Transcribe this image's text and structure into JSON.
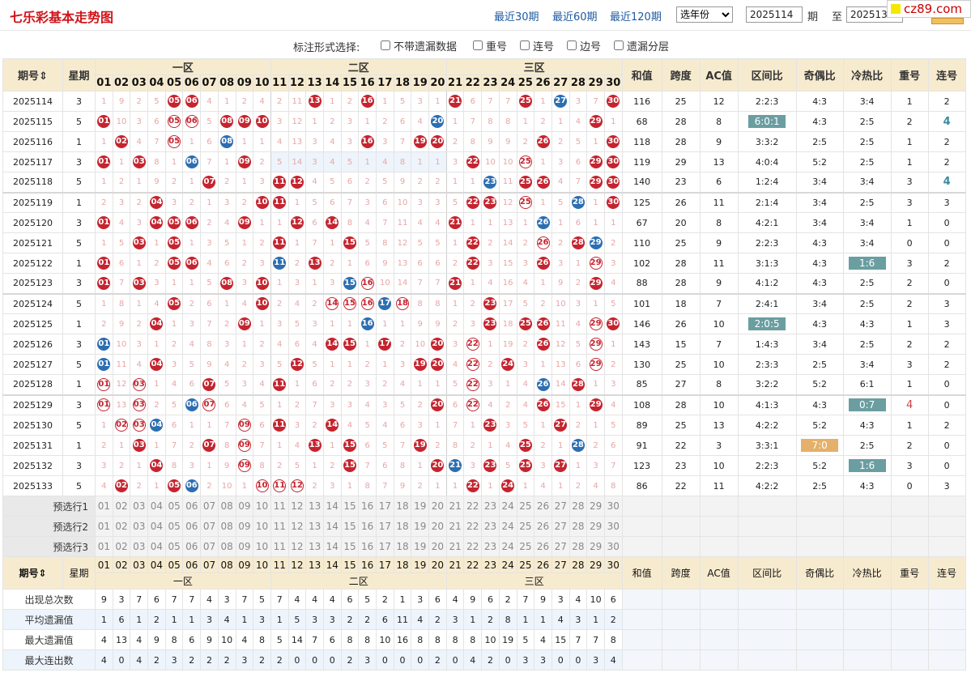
{
  "header": {
    "title": "七乐彩基本走势图",
    "links": [
      "最近30期",
      "最近60期",
      "最近120期"
    ],
    "year_select": "选年份",
    "from_value": "2025114",
    "from_label": "期",
    "to_label": "至",
    "to_value": "2025133",
    "watermark": "cz89.com"
  },
  "options": {
    "label": "标注形式选择:",
    "items": [
      "不带遗漏数据",
      "重号",
      "连号",
      "边号",
      "遗漏分层"
    ]
  },
  "columns": {
    "period": "期号",
    "week": "星期",
    "zone1": "一区",
    "zone2": "二区",
    "zone3": "三区",
    "stats": [
      "和值",
      "跨度",
      "AC值",
      "区间比",
      "奇偶比",
      "冷热比",
      "重号",
      "连号"
    ],
    "stats_footer": [
      "和值",
      "跨度",
      "AC值",
      "区间比",
      "奇偶比",
      "冷热比",
      "重号",
      "连号"
    ]
  },
  "numbers": [
    "01",
    "02",
    "03",
    "04",
    "05",
    "06",
    "07",
    "08",
    "09",
    "10",
    "11",
    "12",
    "13",
    "14",
    "15",
    "16",
    "17",
    "18",
    "19",
    "20",
    "21",
    "22",
    "23",
    "24",
    "25",
    "26",
    "27",
    "28",
    "29",
    "30"
  ],
  "rows": [
    {
      "p": "2025114",
      "w": "3",
      "c": [
        "1",
        "9",
        "2",
        "5",
        "r05",
        "r06",
        "4",
        "1",
        "2",
        "4",
        "2",
        "11",
        "r13",
        "1",
        "2",
        "r16",
        "1",
        "5",
        "3",
        "1",
        "r21",
        "6",
        "7",
        "7",
        "r25",
        "1",
        "b27",
        "3",
        "7",
        "r30"
      ],
      "s": [
        "116",
        "25",
        "12",
        "2:2:3",
        "4:3",
        "3:4",
        "1",
        "2"
      ]
    },
    {
      "p": "2025115",
      "w": "5",
      "c": [
        "r01",
        "10",
        "3",
        "6",
        "o05",
        "o06",
        "5",
        "r08",
        "r09",
        "r10",
        "3",
        "12",
        "1",
        "2",
        "3",
        "1",
        "2",
        "6",
        "4",
        "b20",
        "1",
        "7",
        "8",
        "8",
        "1",
        "2",
        "1",
        "4",
        "r29",
        "1"
      ],
      "s": [
        "68",
        "28",
        "8",
        "h6:0:1",
        "4:3",
        "2:5",
        "2",
        "b4"
      ]
    },
    {
      "p": "2025116",
      "w": "1",
      "c": [
        "1",
        "r02",
        "4",
        "7",
        "o05",
        "1",
        "6",
        "b08",
        "1",
        "1",
        "4",
        "13",
        "3",
        "4",
        "3",
        "r16",
        "3",
        "7",
        "r19",
        "r20",
        "2",
        "8",
        "9",
        "9",
        "2",
        "r26",
        "2",
        "5",
        "1",
        "r30"
      ],
      "s": [
        "118",
        "28",
        "9",
        "3:3:2",
        "2:5",
        "2:5",
        "1",
        "2"
      ]
    },
    {
      "p": "2025117",
      "w": "3",
      "c": [
        "r01",
        "1",
        "r03",
        "8",
        "1",
        "b06",
        "7",
        "1",
        "r09",
        "2",
        "g5",
        "g14",
        "g3",
        "g4",
        "g5",
        "g1",
        "g4",
        "g8",
        "g1",
        "g1",
        "3",
        "r22",
        "10",
        "10",
        "o25",
        "1",
        "3",
        "6",
        "r29",
        "r30"
      ],
      "s": [
        "119",
        "29",
        "13",
        "4:0:4",
        "5:2",
        "2:5",
        "1",
        "2"
      ]
    },
    {
      "p": "2025118",
      "w": "5",
      "c": [
        "1",
        "2",
        "1",
        "9",
        "2",
        "1",
        "r07",
        "2",
        "1",
        "3",
        "r11",
        "r12",
        "4",
        "5",
        "6",
        "2",
        "5",
        "9",
        "2",
        "2",
        "1",
        "1",
        "b23",
        "11",
        "r25",
        "r26",
        "4",
        "7",
        "r29",
        "r30"
      ],
      "s": [
        "140",
        "23",
        "6",
        "1:2:4",
        "3:4",
        "3:4",
        "3",
        "b4"
      ]
    },
    {
      "p": "2025119",
      "w": "1",
      "c": [
        "2",
        "3",
        "2",
        "r04",
        "3",
        "2",
        "1",
        "3",
        "2",
        "r10",
        "r11",
        "1",
        "5",
        "6",
        "7",
        "3",
        "6",
        "10",
        "3",
        "3",
        "5",
        "r22",
        "r23",
        "12",
        "o25",
        "1",
        "5",
        "b28",
        "1",
        "r30"
      ],
      "s": [
        "125",
        "26",
        "11",
        "2:1:4",
        "3:4",
        "2:5",
        "3",
        "3"
      ]
    },
    {
      "p": "2025120",
      "w": "3",
      "c": [
        "r01",
        "4",
        "3",
        "r04",
        "r05",
        "r06",
        "2",
        "4",
        "r09",
        "1",
        "1",
        "r12",
        "6",
        "r14",
        "8",
        "4",
        "7",
        "11",
        "4",
        "4",
        "r21",
        "1",
        "1",
        "13",
        "1",
        "b26",
        "1",
        "6",
        "1",
        "1"
      ],
      "s": [
        "67",
        "20",
        "8",
        "4:2:1",
        "3:4",
        "3:4",
        "1",
        "0"
      ]
    },
    {
      "p": "2025121",
      "w": "5",
      "c": [
        "1",
        "5",
        "r03",
        "1",
        "r05",
        "1",
        "3",
        "5",
        "1",
        "2",
        "r11",
        "1",
        "7",
        "1",
        "r15",
        "5",
        "8",
        "12",
        "5",
        "5",
        "1",
        "r22",
        "2",
        "14",
        "2",
        "o26",
        "2",
        "r28",
        "b29",
        "2"
      ],
      "s": [
        "110",
        "25",
        "9",
        "2:2:3",
        "4:3",
        "3:4",
        "0",
        "0"
      ]
    },
    {
      "p": "2025122",
      "w": "1",
      "c": [
        "r01",
        "6",
        "1",
        "2",
        "r05",
        "r06",
        "4",
        "6",
        "2",
        "3",
        "b11",
        "2",
        "r13",
        "2",
        "1",
        "6",
        "9",
        "13",
        "6",
        "6",
        "2",
        "r22",
        "3",
        "15",
        "3",
        "r26",
        "3",
        "1",
        "o29",
        "3"
      ],
      "s": [
        "102",
        "28",
        "11",
        "3:1:3",
        "4:3",
        "h1:6",
        "3",
        "2"
      ]
    },
    {
      "p": "2025123",
      "w": "3",
      "c": [
        "r01",
        "7",
        "r03",
        "3",
        "1",
        "1",
        "5",
        "r08",
        "3",
        "r10",
        "1",
        "3",
        "1",
        "3",
        "b15",
        "o16",
        "10",
        "14",
        "7",
        "7",
        "r21",
        "1",
        "4",
        "16",
        "4",
        "1",
        "9",
        "2",
        "r29",
        "4"
      ],
      "s": [
        "88",
        "28",
        "9",
        "4:1:2",
        "4:3",
        "2:5",
        "2",
        "0"
      ]
    },
    {
      "p": "2025124",
      "w": "5",
      "c": [
        "1",
        "8",
        "1",
        "4",
        "r05",
        "2",
        "6",
        "1",
        "4",
        "r10",
        "2",
        "4",
        "2",
        "o14",
        "o15",
        "o16",
        "b17",
        "o18",
        "8",
        "8",
        "1",
        "2",
        "r23",
        "17",
        "5",
        "2",
        "10",
        "3",
        "1",
        "5"
      ],
      "s": [
        "101",
        "18",
        "7",
        "2:4:1",
        "3:4",
        "2:5",
        "2",
        "3"
      ]
    },
    {
      "p": "2025125",
      "w": "1",
      "c": [
        "2",
        "9",
        "2",
        "r04",
        "1",
        "3",
        "7",
        "2",
        "r09",
        "1",
        "3",
        "5",
        "3",
        "1",
        "1",
        "b16",
        "1",
        "1",
        "9",
        "9",
        "2",
        "3",
        "r23",
        "18",
        "r25",
        "r26",
        "11",
        "4",
        "o29",
        "r30"
      ],
      "s": [
        "146",
        "26",
        "10",
        "h2:0:5",
        "4:3",
        "4:3",
        "1",
        "3"
      ]
    },
    {
      "p": "2025126",
      "w": "3",
      "c": [
        "b01",
        "10",
        "3",
        "1",
        "2",
        "4",
        "8",
        "3",
        "1",
        "2",
        "4",
        "6",
        "4",
        "r14",
        "r15",
        "1",
        "r17",
        "2",
        "10",
        "r20",
        "3",
        "o22",
        "1",
        "19",
        "2",
        "r26",
        "12",
        "5",
        "o29",
        "1"
      ],
      "s": [
        "143",
        "15",
        "7",
        "1:4:3",
        "3:4",
        "2:5",
        "2",
        "2"
      ]
    },
    {
      "p": "2025127",
      "w": "5",
      "c": [
        "b01",
        "11",
        "4",
        "r04",
        "3",
        "5",
        "9",
        "4",
        "2",
        "3",
        "5",
        "r12",
        "5",
        "1",
        "1",
        "2",
        "1",
        "3",
        "r19",
        "r20",
        "4",
        "o22",
        "2",
        "r24",
        "3",
        "1",
        "13",
        "6",
        "o29",
        "2"
      ],
      "s": [
        "130",
        "25",
        "10",
        "2:3:3",
        "2:5",
        "3:4",
        "3",
        "2"
      ]
    },
    {
      "p": "2025128",
      "w": "1",
      "c": [
        "o01",
        "12",
        "o03",
        "1",
        "4",
        "6",
        "r07",
        "5",
        "3",
        "4",
        "r11",
        "1",
        "6",
        "2",
        "2",
        "3",
        "2",
        "4",
        "1",
        "1",
        "5",
        "o22",
        "3",
        "1",
        "4",
        "b26",
        "14",
        "r28",
        "1",
        "3"
      ],
      "s": [
        "85",
        "27",
        "8",
        "3:2:2",
        "5:2",
        "6:1",
        "1",
        "0"
      ]
    },
    {
      "p": "2025129",
      "w": "3",
      "c": [
        "o01",
        "13",
        "o03",
        "2",
        "5",
        "b06",
        "o07",
        "6",
        "4",
        "5",
        "1",
        "2",
        "7",
        "3",
        "3",
        "4",
        "3",
        "5",
        "2",
        "r20",
        "6",
        "o22",
        "4",
        "2",
        "4",
        "r26",
        "15",
        "1",
        "r29",
        "4"
      ],
      "s": [
        "108",
        "28",
        "10",
        "4:1:3",
        "4:3",
        "h0:7",
        "r4",
        "0"
      ]
    },
    {
      "p": "2025130",
      "w": "5",
      "c": [
        "1",
        "o02",
        "o03",
        "b04",
        "6",
        "1",
        "1",
        "7",
        "o09",
        "6",
        "r11",
        "3",
        "2",
        "r14",
        "4",
        "5",
        "4",
        "6",
        "3",
        "1",
        "7",
        "1",
        "r23",
        "3",
        "5",
        "1",
        "r27",
        "2",
        "1",
        "5"
      ],
      "s": [
        "89",
        "25",
        "13",
        "4:2:2",
        "5:2",
        "4:3",
        "1",
        "2"
      ]
    },
    {
      "p": "2025131",
      "w": "1",
      "c": [
        "2",
        "1",
        "r03",
        "1",
        "7",
        "2",
        "r07",
        "8",
        "o09",
        "7",
        "1",
        "4",
        "r13",
        "1",
        "r15",
        "6",
        "5",
        "7",
        "r19",
        "2",
        "8",
        "2",
        "1",
        "4",
        "r25",
        "2",
        "1",
        "b28",
        "2",
        "6"
      ],
      "s": [
        "91",
        "22",
        "3",
        "3:3:1",
        "o7:0",
        "2:5",
        "2",
        "0"
      ]
    },
    {
      "p": "2025132",
      "w": "3",
      "c": [
        "3",
        "2",
        "1",
        "r04",
        "8",
        "3",
        "1",
        "9",
        "o09",
        "8",
        "2",
        "5",
        "1",
        "2",
        "r15",
        "7",
        "6",
        "8",
        "1",
        "r20",
        "b21",
        "3",
        "r23",
        "5",
        "r25",
        "3",
        "r27",
        "1",
        "3",
        "7"
      ],
      "s": [
        "123",
        "23",
        "10",
        "2:2:3",
        "5:2",
        "h1:6",
        "3",
        "0"
      ]
    },
    {
      "p": "2025133",
      "w": "5",
      "c": [
        "4",
        "r02",
        "2",
        "1",
        "r05",
        "b06",
        "2",
        "10",
        "1",
        "o10",
        "o11",
        "o12",
        "2",
        "3",
        "1",
        "8",
        "7",
        "9",
        "2",
        "1",
        "1",
        "r22",
        "1",
        "r24",
        "1",
        "4",
        "1",
        "2",
        "4",
        "8"
      ],
      "s": [
        "86",
        "22",
        "11",
        "4:2:2",
        "2:5",
        "4:3",
        "0",
        "3"
      ]
    }
  ],
  "preselect": [
    "预选行1",
    "预选行2",
    "预选行3"
  ],
  "stats_rows": [
    {
      "label": "出现总次数",
      "v": [
        "9",
        "3",
        "7",
        "6",
        "7",
        "7",
        "4",
        "3",
        "7",
        "5",
        "7",
        "4",
        "4",
        "4",
        "6",
        "5",
        "2",
        "1",
        "3",
        "6",
        "4",
        "9",
        "6",
        "2",
        "7",
        "9",
        "3",
        "4",
        "10",
        "6"
      ]
    },
    {
      "label": "平均遗漏值",
      "v": [
        "1",
        "6",
        "1",
        "2",
        "1",
        "1",
        "3",
        "4",
        "1",
        "3",
        "1",
        "5",
        "3",
        "3",
        "2",
        "2",
        "6",
        "11",
        "4",
        "2",
        "3",
        "1",
        "2",
        "8",
        "1",
        "1",
        "4",
        "3",
        "1",
        "2"
      ]
    },
    {
      "label": "最大遗漏值",
      "v": [
        "4",
        "13",
        "4",
        "9",
        "8",
        "6",
        "9",
        "10",
        "4",
        "8",
        "5",
        "14",
        "7",
        "6",
        "8",
        "8",
        "10",
        "16",
        "8",
        "8",
        "8",
        "8",
        "10",
        "19",
        "5",
        "4",
        "15",
        "7",
        "7",
        "8"
      ]
    },
    {
      "label": "最大连出数",
      "v": [
        "4",
        "0",
        "4",
        "2",
        "3",
        "2",
        "2",
        "2",
        "3",
        "2",
        "2",
        "0",
        "0",
        "0",
        "2",
        "3",
        "0",
        "0",
        "0",
        "2",
        "0",
        "4",
        "2",
        "0",
        "3",
        "3",
        "0",
        "0",
        "3",
        "4"
      ]
    }
  ],
  "colors": {
    "red": "#c5242f",
    "blue": "#2c6eb1",
    "header_bg": "#f7ebcf",
    "title": "#d0141a",
    "link": "#1e5aa0"
  }
}
